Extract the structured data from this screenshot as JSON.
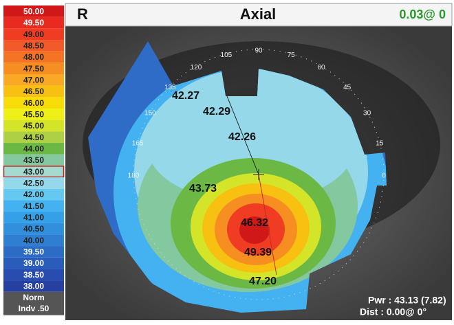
{
  "header": {
    "eye": "R",
    "mode": "Axial",
    "reading": "0.03@ 0"
  },
  "scale": {
    "entries": [
      {
        "label": "50.00",
        "color": "#d01818"
      },
      {
        "label": "49.50",
        "color": "#e82a20"
      },
      {
        "label": "49.00",
        "color": "#f03c22"
      },
      {
        "label": "48.50",
        "color": "#f25a2a"
      },
      {
        "label": "48.00",
        "color": "#f47424"
      },
      {
        "label": "47.50",
        "color": "#f78e22"
      },
      {
        "label": "47.00",
        "color": "#f8a822"
      },
      {
        "label": "46.50",
        "color": "#f8c010"
      },
      {
        "label": "46.00",
        "color": "#f8dc08"
      },
      {
        "label": "45.50",
        "color": "#eef018"
      },
      {
        "label": "45.00",
        "color": "#d4e428"
      },
      {
        "label": "44.50",
        "color": "#aed044"
      },
      {
        "label": "44.00",
        "color": "#6cb844"
      },
      {
        "label": "43.50",
        "color": "#84c8a0"
      },
      {
        "label": "43.00",
        "color": "#a4dad0",
        "highlight": true
      },
      {
        "label": "42.50",
        "color": "#94d8ea"
      },
      {
        "label": "42.00",
        "color": "#64c8f0"
      },
      {
        "label": "41.50",
        "color": "#44b2f0"
      },
      {
        "label": "41.00",
        "color": "#34a0e8"
      },
      {
        "label": "40.50",
        "color": "#3090de"
      },
      {
        "label": "40.00",
        "color": "#2e7ed2"
      },
      {
        "label": "39.50",
        "color": "#2c6cc6"
      },
      {
        "label": "39.00",
        "color": "#2a5cbc"
      },
      {
        "label": "38.50",
        "color": "#284cb0"
      },
      {
        "label": "38.00",
        "color": "#2640a2"
      }
    ],
    "norm": "Norm",
    "step": "Indv .50"
  },
  "angles": [
    "0",
    "15",
    "30",
    "45",
    "60",
    "75",
    "90",
    "105",
    "120",
    "135",
    "150",
    "165",
    "180"
  ],
  "map_values": [
    "42.27",
    "42.29",
    "42.26",
    "43.73",
    "46.32",
    "49.39",
    "47.20"
  ],
  "footer": {
    "power": "Pwr :  43.13 (7.82)",
    "distance": "Dist :  0.00@  0°"
  }
}
